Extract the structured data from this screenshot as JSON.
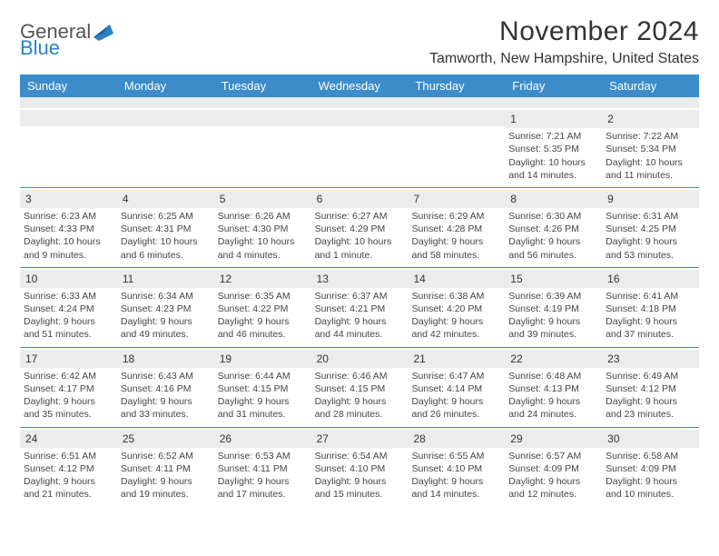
{
  "brand": {
    "word1": "General",
    "word2": "Blue"
  },
  "title": "November 2024",
  "location": "Tamworth, New Hampshire, United States",
  "colors": {
    "accent": "#3b8cc8",
    "brandBlue": "#2c7fc7",
    "headerStripe": "#ececec",
    "text": "#333333"
  },
  "dayNames": [
    "Sunday",
    "Monday",
    "Tuesday",
    "Wednesday",
    "Thursday",
    "Friday",
    "Saturday"
  ],
  "weeks": [
    [
      null,
      null,
      null,
      null,
      null,
      {
        "n": "1",
        "sr": "Sunrise: 7:21 AM",
        "ss": "Sunset: 5:35 PM",
        "dl": "Daylight: 10 hours and 14 minutes."
      },
      {
        "n": "2",
        "sr": "Sunrise: 7:22 AM",
        "ss": "Sunset: 5:34 PM",
        "dl": "Daylight: 10 hours and 11 minutes."
      }
    ],
    [
      {
        "n": "3",
        "sr": "Sunrise: 6:23 AM",
        "ss": "Sunset: 4:33 PM",
        "dl": "Daylight: 10 hours and 9 minutes."
      },
      {
        "n": "4",
        "sr": "Sunrise: 6:25 AM",
        "ss": "Sunset: 4:31 PM",
        "dl": "Daylight: 10 hours and 6 minutes."
      },
      {
        "n": "5",
        "sr": "Sunrise: 6:26 AM",
        "ss": "Sunset: 4:30 PM",
        "dl": "Daylight: 10 hours and 4 minutes."
      },
      {
        "n": "6",
        "sr": "Sunrise: 6:27 AM",
        "ss": "Sunset: 4:29 PM",
        "dl": "Daylight: 10 hours and 1 minute."
      },
      {
        "n": "7",
        "sr": "Sunrise: 6:29 AM",
        "ss": "Sunset: 4:28 PM",
        "dl": "Daylight: 9 hours and 58 minutes."
      },
      {
        "n": "8",
        "sr": "Sunrise: 6:30 AM",
        "ss": "Sunset: 4:26 PM",
        "dl": "Daylight: 9 hours and 56 minutes."
      },
      {
        "n": "9",
        "sr": "Sunrise: 6:31 AM",
        "ss": "Sunset: 4:25 PM",
        "dl": "Daylight: 9 hours and 53 minutes."
      }
    ],
    [
      {
        "n": "10",
        "sr": "Sunrise: 6:33 AM",
        "ss": "Sunset: 4:24 PM",
        "dl": "Daylight: 9 hours and 51 minutes."
      },
      {
        "n": "11",
        "sr": "Sunrise: 6:34 AM",
        "ss": "Sunset: 4:23 PM",
        "dl": "Daylight: 9 hours and 49 minutes."
      },
      {
        "n": "12",
        "sr": "Sunrise: 6:35 AM",
        "ss": "Sunset: 4:22 PM",
        "dl": "Daylight: 9 hours and 46 minutes."
      },
      {
        "n": "13",
        "sr": "Sunrise: 6:37 AM",
        "ss": "Sunset: 4:21 PM",
        "dl": "Daylight: 9 hours and 44 minutes."
      },
      {
        "n": "14",
        "sr": "Sunrise: 6:38 AM",
        "ss": "Sunset: 4:20 PM",
        "dl": "Daylight: 9 hours and 42 minutes."
      },
      {
        "n": "15",
        "sr": "Sunrise: 6:39 AM",
        "ss": "Sunset: 4:19 PM",
        "dl": "Daylight: 9 hours and 39 minutes."
      },
      {
        "n": "16",
        "sr": "Sunrise: 6:41 AM",
        "ss": "Sunset: 4:18 PM",
        "dl": "Daylight: 9 hours and 37 minutes."
      }
    ],
    [
      {
        "n": "17",
        "sr": "Sunrise: 6:42 AM",
        "ss": "Sunset: 4:17 PM",
        "dl": "Daylight: 9 hours and 35 minutes."
      },
      {
        "n": "18",
        "sr": "Sunrise: 6:43 AM",
        "ss": "Sunset: 4:16 PM",
        "dl": "Daylight: 9 hours and 33 minutes."
      },
      {
        "n": "19",
        "sr": "Sunrise: 6:44 AM",
        "ss": "Sunset: 4:15 PM",
        "dl": "Daylight: 9 hours and 31 minutes."
      },
      {
        "n": "20",
        "sr": "Sunrise: 6:46 AM",
        "ss": "Sunset: 4:15 PM",
        "dl": "Daylight: 9 hours and 28 minutes."
      },
      {
        "n": "21",
        "sr": "Sunrise: 6:47 AM",
        "ss": "Sunset: 4:14 PM",
        "dl": "Daylight: 9 hours and 26 minutes."
      },
      {
        "n": "22",
        "sr": "Sunrise: 6:48 AM",
        "ss": "Sunset: 4:13 PM",
        "dl": "Daylight: 9 hours and 24 minutes."
      },
      {
        "n": "23",
        "sr": "Sunrise: 6:49 AM",
        "ss": "Sunset: 4:12 PM",
        "dl": "Daylight: 9 hours and 23 minutes."
      }
    ],
    [
      {
        "n": "24",
        "sr": "Sunrise: 6:51 AM",
        "ss": "Sunset: 4:12 PM",
        "dl": "Daylight: 9 hours and 21 minutes."
      },
      {
        "n": "25",
        "sr": "Sunrise: 6:52 AM",
        "ss": "Sunset: 4:11 PM",
        "dl": "Daylight: 9 hours and 19 minutes."
      },
      {
        "n": "26",
        "sr": "Sunrise: 6:53 AM",
        "ss": "Sunset: 4:11 PM",
        "dl": "Daylight: 9 hours and 17 minutes."
      },
      {
        "n": "27",
        "sr": "Sunrise: 6:54 AM",
        "ss": "Sunset: 4:10 PM",
        "dl": "Daylight: 9 hours and 15 minutes."
      },
      {
        "n": "28",
        "sr": "Sunrise: 6:55 AM",
        "ss": "Sunset: 4:10 PM",
        "dl": "Daylight: 9 hours and 14 minutes."
      },
      {
        "n": "29",
        "sr": "Sunrise: 6:57 AM",
        "ss": "Sunset: 4:09 PM",
        "dl": "Daylight: 9 hours and 12 minutes."
      },
      {
        "n": "30",
        "sr": "Sunrise: 6:58 AM",
        "ss": "Sunset: 4:09 PM",
        "dl": "Daylight: 9 hours and 10 minutes."
      }
    ]
  ]
}
